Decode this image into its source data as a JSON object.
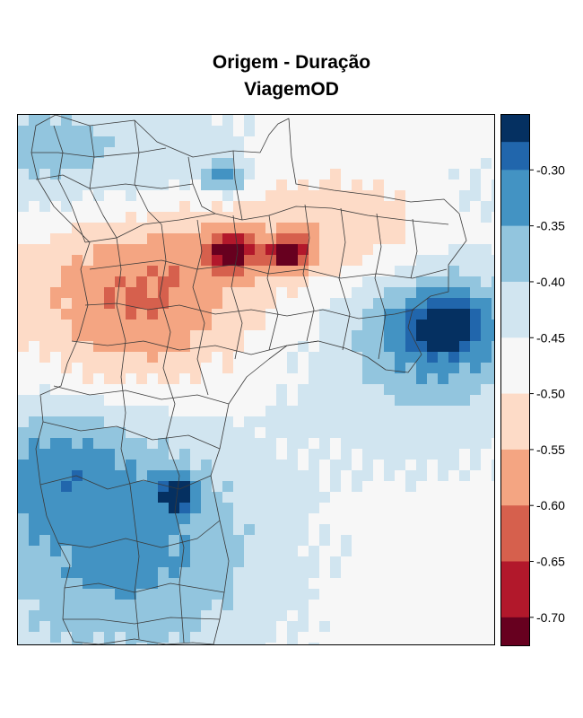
{
  "title": {
    "line1": "Origem - Duração",
    "line2": "ViagemOD"
  },
  "legend": {
    "ticks": [
      "-0.30",
      "-0.35",
      "-0.40",
      "-0.45",
      "-0.50",
      "-0.55",
      "-0.60",
      "-0.65",
      "-0.70"
    ],
    "tick_values": [
      -0.3,
      -0.35,
      -0.4,
      -0.45,
      -0.5,
      -0.55,
      -0.6,
      -0.65,
      -0.7
    ],
    "range": [
      -0.725,
      -0.25
    ],
    "bins": [
      {
        "from": -0.275,
        "to": -0.25,
        "color": "#053061"
      },
      {
        "from": -0.3,
        "to": -0.275,
        "color": "#2166ac"
      },
      {
        "from": -0.35,
        "to": -0.3,
        "color": "#4393c3"
      },
      {
        "from": -0.4,
        "to": -0.35,
        "color": "#92c5de"
      },
      {
        "from": -0.45,
        "to": -0.4,
        "color": "#d1e5f0"
      },
      {
        "from": -0.5,
        "to": -0.45,
        "color": "#f7f7f7"
      },
      {
        "from": -0.55,
        "to": -0.5,
        "color": "#fddbc7"
      },
      {
        "from": -0.6,
        "to": -0.55,
        "color": "#f4a582"
      },
      {
        "from": -0.65,
        "to": -0.6,
        "color": "#d6604d"
      },
      {
        "from": -0.7,
        "to": -0.65,
        "color": "#b2182b"
      },
      {
        "from": -0.725,
        "to": -0.7,
        "color": "#67001f"
      }
    ]
  },
  "chart_data": {
    "type": "heatmap",
    "title": "Origem - Duração ViagemOD",
    "value_range": [
      -0.725,
      -0.25
    ],
    "hotspots": [
      {
        "name": "center-red",
        "value": -0.71
      },
      {
        "name": "east-center-red",
        "value": -0.71
      },
      {
        "name": "south-darkblue",
        "value": -0.27
      },
      {
        "name": "east-blue",
        "value": -0.3
      },
      {
        "name": "north-blue",
        "value": -0.3
      }
    ]
  }
}
